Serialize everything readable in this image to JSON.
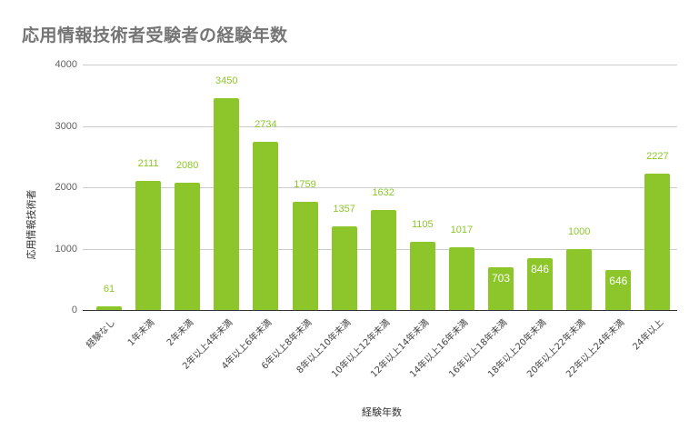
{
  "chart_data": {
    "type": "bar",
    "title": "応用情報技術者受験者の経験年数",
    "xlabel": "経験年数",
    "ylabel": "応用情報技術者",
    "ylim": [
      0,
      4000
    ],
    "yticks": [
      "0",
      "1000",
      "2000",
      "3000",
      "4000"
    ],
    "grid": true,
    "legend": null,
    "bar_color": "#8dc62a",
    "categories": [
      "経験なし",
      "1年未満",
      "2年未満",
      "2年以上4年未満",
      "4年以上6年未満",
      "6年以上8年未満",
      "8年以上10年未満",
      "10年以上12年未満",
      "12年以上14年未満",
      "14年以上16年未満",
      "16年以上18年未満",
      "18年以上20年未満",
      "20年以上22年未満",
      "22年以上24年未満",
      "24年以上"
    ],
    "values": [
      61,
      2111,
      2080,
      3450,
      2734,
      1759,
      1357,
      1632,
      1105,
      1017,
      703,
      846,
      1000,
      646,
      2227
    ],
    "value_labels": [
      "61",
      "2111",
      "2080",
      "3450",
      "2734",
      "1759",
      "1357",
      "1632",
      "1105",
      "1017",
      "703",
      "846",
      "1000",
      "646",
      "2227"
    ],
    "label_inside": [
      false,
      false,
      false,
      false,
      false,
      false,
      false,
      false,
      false,
      false,
      true,
      true,
      false,
      true,
      false
    ]
  }
}
